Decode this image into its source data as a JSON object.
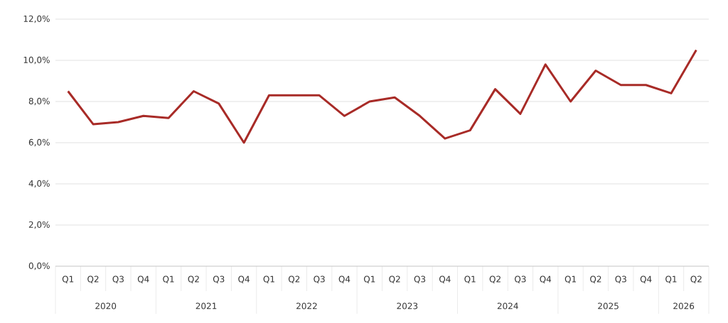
{
  "chart_data": {
    "type": "line",
    "categories": [
      "Q1",
      "Q2",
      "Q3",
      "Q4",
      "Q1",
      "Q2",
      "Q3",
      "Q4",
      "Q1",
      "Q2",
      "Q3",
      "Q4",
      "Q1",
      "Q2",
      "Q3",
      "Q4",
      "Q1",
      "Q2",
      "Q3",
      "Q4",
      "Q1",
      "Q2",
      "Q3",
      "Q4",
      "Q1",
      "Q2"
    ],
    "series": [
      {
        "color": "#a82b27",
        "values": [
          8.5,
          6.9,
          7.0,
          7.3,
          7.2,
          8.5,
          7.9,
          6.0,
          8.3,
          8.3,
          8.3,
          7.3,
          8.0,
          8.2,
          7.3,
          6.2,
          6.6,
          8.6,
          7.4,
          9.8,
          8.0,
          9.5,
          8.8,
          8.8,
          8.4,
          10.5
        ]
      }
    ],
    "ylim": [
      0,
      12
    ],
    "yticks": [
      {
        "value": 0,
        "label": "0,0%"
      },
      {
        "value": 2,
        "label": "2,0%"
      },
      {
        "value": 4,
        "label": "4,0%"
      },
      {
        "value": 6,
        "label": "6,0%"
      },
      {
        "value": 8,
        "label": "8,0%"
      },
      {
        "value": 10,
        "label": "10,0%"
      },
      {
        "value": 12,
        "label": "12,0%"
      }
    ],
    "grid": "y",
    "annotations": [
      "2020",
      "2021",
      "2022",
      "2023",
      "2024",
      "2025",
      "2026"
    ]
  }
}
